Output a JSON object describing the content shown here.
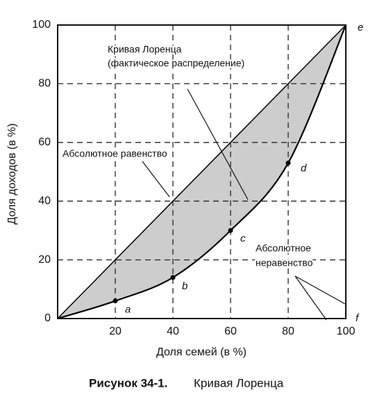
{
  "chart_data": {
    "type": "line",
    "x": [
      0,
      20,
      40,
      60,
      80,
      100
    ],
    "xlim": [
      0,
      100
    ],
    "ylim": [
      0,
      100
    ],
    "xticks": [
      20,
      40,
      60,
      80,
      100
    ],
    "yticks": [
      0,
      20,
      40,
      60,
      80,
      100
    ],
    "grid": true,
    "grid_style": "dashed",
    "xlabel": "Доля семей (в %)",
    "ylabel": "Доля доходов (в %)",
    "series": [
      {
        "color": "#000000",
        "values": [
          0,
          6,
          14,
          30,
          53,
          100
        ],
        "point_labels": [
          null,
          "a",
          "b",
          "c",
          "d",
          "e"
        ]
      },
      {
        "color": "#000000",
        "values": [
          0,
          20,
          40,
          60,
          80,
          100
        ]
      }
    ],
    "fill_between": "#cdcdcd",
    "corner_label": "f",
    "annotations": [
      "Кривая Лоренца",
      "(фактическое распределение)",
      "Абсолютное равенство",
      "Абсолютное",
      "неравенство"
    ]
  },
  "caption": {
    "number": "Рисунок 34-1.",
    "text": "Кривая Лоренца"
  }
}
